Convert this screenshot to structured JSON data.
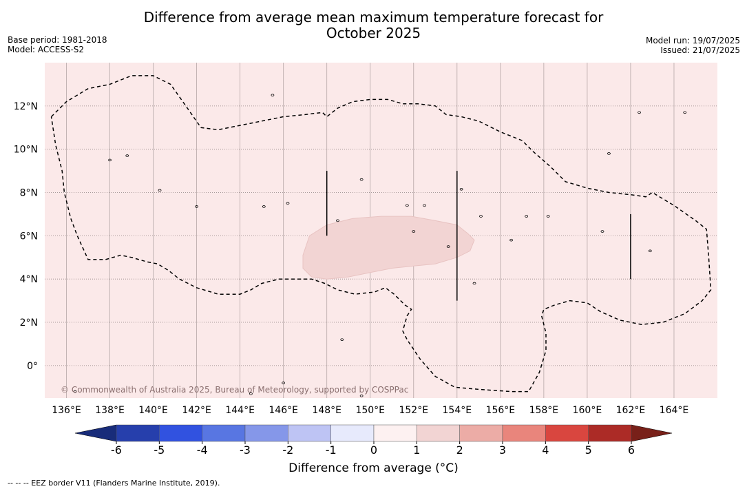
{
  "title_line1": "Difference from average mean maximum temperature forecast for",
  "title_line2": "October 2025",
  "base_period": "Base period: 1981-2018",
  "model": "Model: ACCESS-S2",
  "model_run": "Model run: 19/07/2025",
  "issued": "Issued: 21/07/2025",
  "copyright": "© Commonwealth of Australia 2025, Bureau of Meteorology, supported by COSPPac",
  "colorbar_label": "Difference from average (°C)",
  "footnote": "--  --  -- EEZ border V11 (Flanders Marine Institute, 2019).",
  "map": {
    "lon_range": [
      135.0,
      166.0
    ],
    "lat_range": [
      -1.5,
      14.0
    ],
    "background_color": "#fbe9e9",
    "patch_color": "#f2d4d3",
    "lon_ticks": [
      136,
      138,
      140,
      142,
      144,
      146,
      148,
      150,
      152,
      154,
      156,
      158,
      160,
      162,
      164
    ],
    "lon_labels": [
      "136°E",
      "138°E",
      "140°E",
      "142°E",
      "144°E",
      "146°E",
      "148°E",
      "150°E",
      "152°E",
      "154°E",
      "156°E",
      "158°E",
      "160°E",
      "162°E",
      "164°E"
    ],
    "lat_ticks": [
      0,
      2,
      4,
      6,
      8,
      10,
      12
    ],
    "lat_labels": [
      "0°",
      "2°N",
      "4°N",
      "6°N",
      "8°N",
      "10°N",
      "12°N"
    ],
    "eez_border": [
      [
        135.3,
        11.5
      ],
      [
        136.0,
        12.2
      ],
      [
        137.0,
        12.8
      ],
      [
        138.0,
        13.0
      ],
      [
        139.0,
        13.4
      ],
      [
        140.0,
        13.4
      ],
      [
        140.8,
        13.0
      ],
      [
        141.5,
        12.0
      ],
      [
        142.2,
        11.0
      ],
      [
        143.0,
        10.9
      ],
      [
        144.0,
        11.1
      ],
      [
        145.0,
        11.3
      ],
      [
        146.0,
        11.5
      ],
      [
        147.0,
        11.6
      ],
      [
        147.8,
        11.7
      ],
      [
        148.0,
        11.5
      ],
      [
        148.5,
        11.9
      ],
      [
        149.2,
        12.2
      ],
      [
        150.0,
        12.3
      ],
      [
        150.8,
        12.3
      ],
      [
        151.5,
        12.1
      ],
      [
        152.2,
        12.1
      ],
      [
        153.0,
        12.0
      ],
      [
        153.5,
        11.6
      ],
      [
        154.2,
        11.5
      ],
      [
        155.0,
        11.3
      ],
      [
        156.0,
        10.8
      ],
      [
        157.0,
        10.4
      ],
      [
        157.5,
        9.9
      ],
      [
        158.3,
        9.2
      ],
      [
        159.0,
        8.5
      ],
      [
        160.0,
        8.2
      ],
      [
        161.0,
        8.0
      ],
      [
        162.0,
        7.9
      ],
      [
        162.7,
        7.8
      ],
      [
        163.0,
        8.0
      ],
      [
        164.0,
        7.4
      ],
      [
        165.0,
        6.7
      ],
      [
        165.5,
        6.3
      ],
      [
        165.6,
        5.0
      ],
      [
        165.7,
        3.5
      ],
      [
        165.3,
        3.0
      ],
      [
        164.5,
        2.4
      ],
      [
        163.5,
        2.0
      ],
      [
        162.5,
        1.9
      ],
      [
        161.5,
        2.1
      ],
      [
        160.6,
        2.5
      ],
      [
        160.0,
        2.9
      ],
      [
        159.2,
        3.0
      ],
      [
        158.5,
        2.8
      ],
      [
        158.0,
        2.6
      ],
      [
        157.9,
        2.3
      ],
      [
        158.1,
        1.5
      ],
      [
        158.1,
        0.7
      ],
      [
        157.8,
        -0.3
      ],
      [
        157.3,
        -1.2
      ],
      [
        156.5,
        -1.2
      ],
      [
        155.0,
        -1.1
      ],
      [
        153.9,
        -1.0
      ],
      [
        153.0,
        -0.5
      ],
      [
        152.3,
        0.3
      ],
      [
        151.7,
        1.2
      ],
      [
        151.5,
        1.6
      ],
      [
        151.7,
        2.3
      ],
      [
        151.9,
        2.6
      ],
      [
        151.6,
        2.8
      ],
      [
        151.1,
        3.3
      ],
      [
        150.7,
        3.6
      ],
      [
        150.2,
        3.4
      ],
      [
        149.3,
        3.3
      ],
      [
        148.5,
        3.5
      ],
      [
        147.9,
        3.8
      ],
      [
        147.3,
        4.0
      ],
      [
        146.5,
        4.0
      ],
      [
        145.8,
        4.0
      ],
      [
        145.0,
        3.8
      ],
      [
        144.5,
        3.5
      ],
      [
        144.0,
        3.3
      ],
      [
        143.0,
        3.3
      ],
      [
        142.0,
        3.6
      ],
      [
        141.2,
        4.0
      ],
      [
        140.7,
        4.4
      ],
      [
        140.2,
        4.7
      ],
      [
        139.7,
        4.8
      ],
      [
        139.0,
        5.0
      ],
      [
        138.5,
        5.1
      ],
      [
        137.8,
        4.9
      ],
      [
        137.0,
        4.9
      ],
      [
        136.5,
        6.0
      ],
      [
        136.2,
        6.8
      ],
      [
        135.9,
        8.0
      ],
      [
        135.8,
        9.0
      ],
      [
        135.5,
        10.2
      ],
      [
        135.3,
        11.5
      ]
    ],
    "warm_patch": [
      [
        147.2,
        6.0
      ],
      [
        148.0,
        6.5
      ],
      [
        149.2,
        6.8
      ],
      [
        150.5,
        6.9
      ],
      [
        151.9,
        6.9
      ],
      [
        153.0,
        6.7
      ],
      [
        154.0,
        6.5
      ],
      [
        154.5,
        6.1
      ],
      [
        154.8,
        5.8
      ],
      [
        154.6,
        5.3
      ],
      [
        154.0,
        5.0
      ],
      [
        153.0,
        4.7
      ],
      [
        152.0,
        4.6
      ],
      [
        151.0,
        4.5
      ],
      [
        150.0,
        4.3
      ],
      [
        149.0,
        4.1
      ],
      [
        148.0,
        4.0
      ],
      [
        147.3,
        4.1
      ],
      [
        146.9,
        4.5
      ],
      [
        146.9,
        5.1
      ],
      [
        147.2,
        6.0
      ]
    ],
    "dateline_bars": [
      [
        148.0,
        6.0,
        9.0
      ],
      [
        154.0,
        3.0,
        9.0
      ],
      [
        162.0,
        4.0,
        7.0
      ]
    ],
    "islands": [
      [
        145.5,
        12.5
      ],
      [
        138.0,
        9.5
      ],
      [
        138.8,
        9.7
      ],
      [
        140.3,
        8.1
      ],
      [
        142.0,
        7.35
      ],
      [
        145.1,
        7.35
      ],
      [
        146.2,
        7.5
      ],
      [
        148.5,
        6.7
      ],
      [
        149.6,
        8.6
      ],
      [
        151.7,
        7.4
      ],
      [
        152.5,
        7.4
      ],
      [
        154.2,
        8.15
      ],
      [
        155.1,
        6.9
      ],
      [
        156.5,
        5.8
      ],
      [
        157.2,
        6.9
      ],
      [
        158.2,
        6.9
      ],
      [
        160.7,
        6.2
      ],
      [
        161.0,
        9.8
      ],
      [
        162.4,
        11.7
      ],
      [
        164.5,
        11.7
      ],
      [
        162.9,
        5.3
      ],
      [
        154.8,
        3.8
      ],
      [
        152.0,
        6.2
      ],
      [
        153.6,
        5.5
      ],
      [
        148.7,
        1.2
      ],
      [
        146.0,
        -0.8
      ],
      [
        136.4,
        -1.2
      ],
      [
        144.5,
        -1.3
      ],
      [
        149.6,
        -1.4
      ]
    ]
  },
  "colorbar": {
    "colors": [
      "#263fac",
      "#3152e0",
      "#5876e2",
      "#8597e9",
      "#bec4f4",
      "#e7eafc",
      "#fdf1f1",
      "#f2d4d3",
      "#ecaca6",
      "#e9857c",
      "#d9463f",
      "#ac2b26"
    ],
    "under_color": "#182c7a",
    "over_color": "#782019",
    "tick_labels": [
      "-6",
      "-5",
      "-4",
      "-3",
      "-2",
      "-1",
      "0",
      "1",
      "2",
      "3",
      "4",
      "5",
      "6"
    ]
  }
}
